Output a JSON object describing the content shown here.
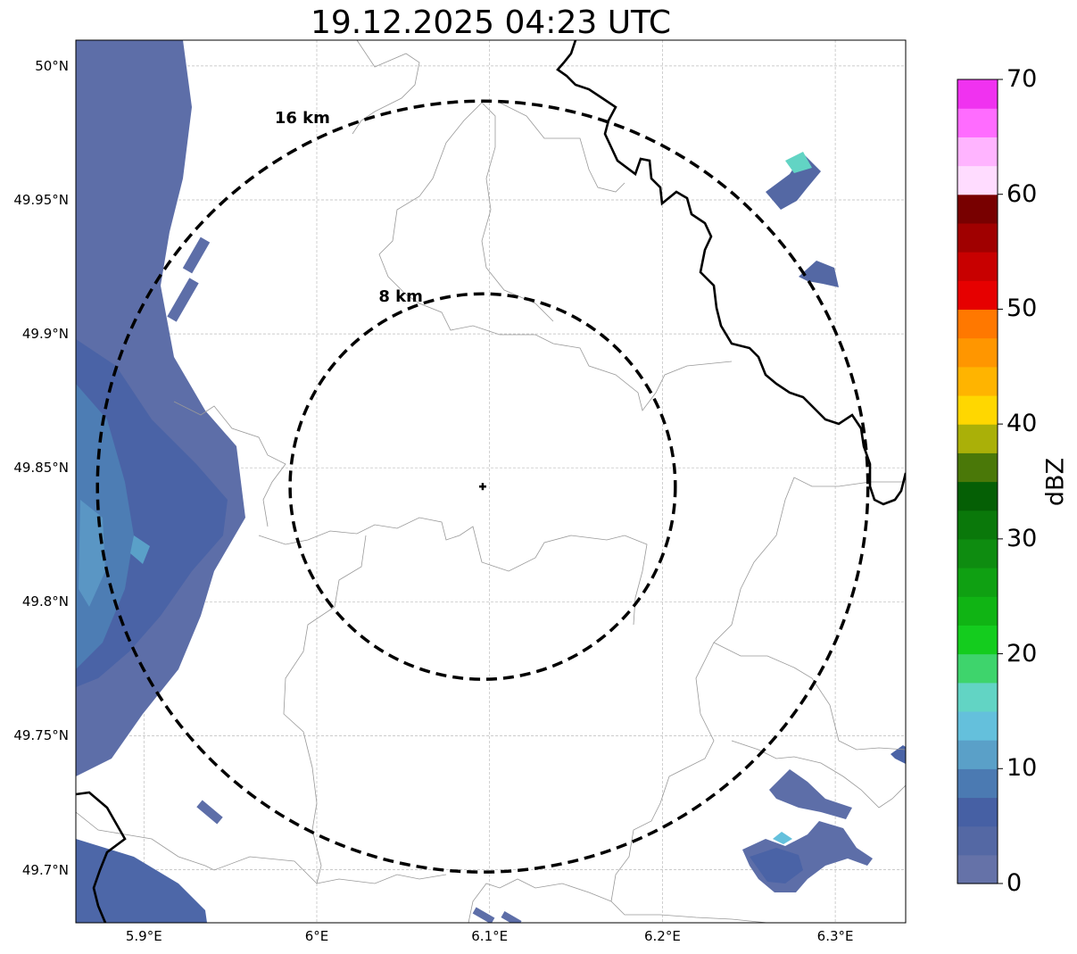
{
  "title": "19.12.2025 04:23 UTC",
  "map": {
    "lon_ticks": [
      {
        "value": 5.9,
        "label": "5.9°E"
      },
      {
        "value": 6.0,
        "label": "6°E"
      },
      {
        "value": 6.1,
        "label": "6.1°E"
      },
      {
        "value": 6.2,
        "label": "6.2°E"
      },
      {
        "value": 6.3,
        "label": "6.3°E"
      }
    ],
    "lat_ticks": [
      {
        "value": 50.0,
        "label": "50°N"
      },
      {
        "value": 49.95,
        "label": "49.95°N"
      },
      {
        "value": 49.9,
        "label": "49.9°N"
      },
      {
        "value": 49.85,
        "label": "49.85°N"
      },
      {
        "value": 49.8,
        "label": "49.8°N"
      },
      {
        "value": 49.75,
        "label": "49.75°N"
      },
      {
        "value": 49.7,
        "label": "49.7°N"
      }
    ],
    "radar_site": {
      "lon": 6.096,
      "lat": 49.843
    },
    "rings": [
      {
        "radius_km": 16,
        "label": "16 km"
      },
      {
        "radius_km": 8,
        "label": "8 km"
      }
    ]
  },
  "colorbar": {
    "label": "dBZ",
    "min": 0,
    "max": 70,
    "step": 2.5,
    "ticks": [
      "0",
      "10",
      "20",
      "30",
      "40",
      "50",
      "60",
      "70"
    ],
    "colors": [
      "#6572a8",
      "#5468a4",
      "#4660a4",
      "#4b7ab2",
      "#5aa0c8",
      "#64c0dc",
      "#62d4c4",
      "#3ed46c",
      "#14cc1e",
      "#10b414",
      "#0fa012",
      "#0e8c10",
      "#0a780a",
      "#055f05",
      "#4a7808",
      "#aab008",
      "#ffd700",
      "#ffb400",
      "#ff9600",
      "#ff7800",
      "#e60000",
      "#c80000",
      "#a00000",
      "#780000",
      "#ffdcff",
      "#ffb4ff",
      "#ff6cff",
      "#f032f0"
    ]
  }
}
